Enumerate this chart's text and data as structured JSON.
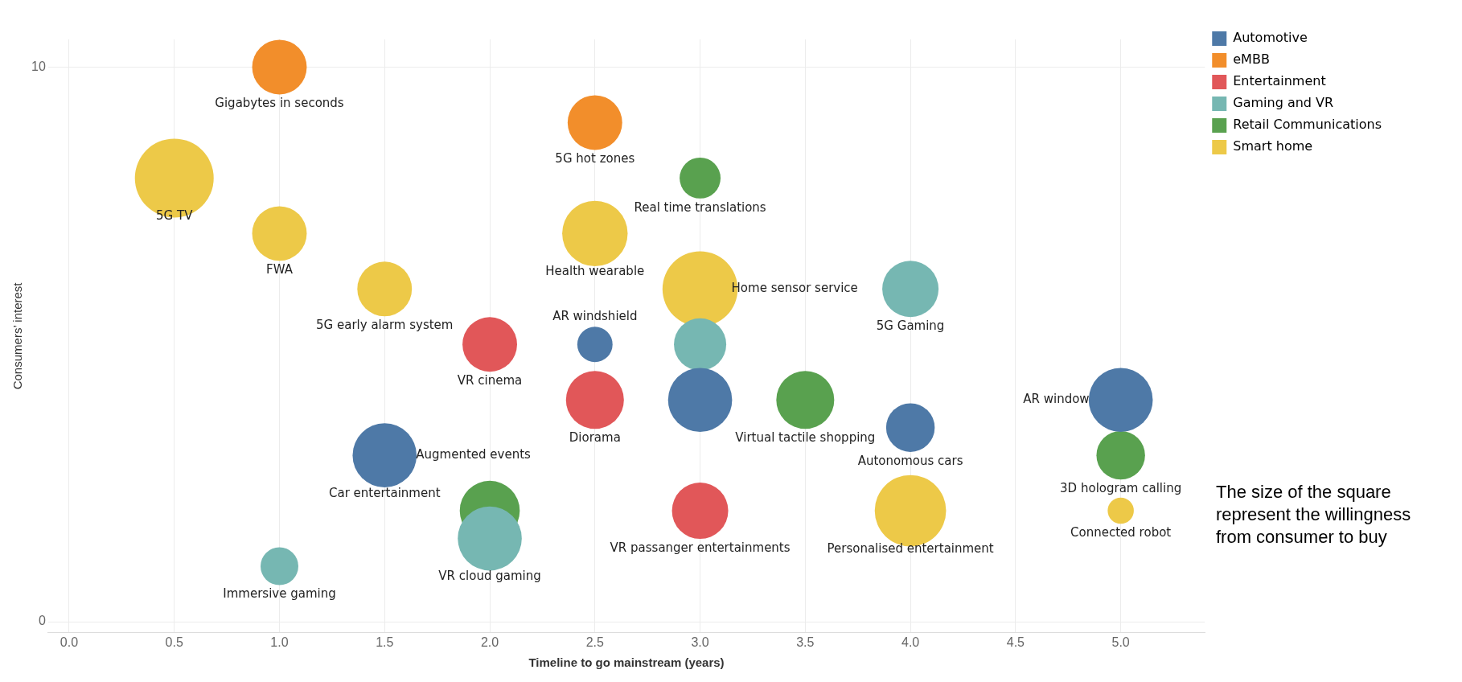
{
  "chart_data": {
    "type": "bubble",
    "xlabel": "Timeline to go mainstream (years)",
    "ylabel": "Consumers’ interest",
    "xlim": [
      -0.1,
      5.4
    ],
    "xticks": [
      {
        "value": 0,
        "label": "0.0"
      },
      {
        "value": 0.5,
        "label": "0.5"
      },
      {
        "value": 1,
        "label": "1.0"
      },
      {
        "value": 1.5,
        "label": "1.5"
      },
      {
        "value": 2,
        "label": "2.0"
      },
      {
        "value": 2.5,
        "label": "2.5"
      },
      {
        "value": 3,
        "label": "3.0"
      },
      {
        "value": 3.5,
        "label": "3.5"
      },
      {
        "value": 4,
        "label": "4.0"
      },
      {
        "value": 4.5,
        "label": "4.5"
      },
      {
        "value": 5,
        "label": "5.0"
      }
    ],
    "ylim": [
      -0.2,
      10.5
    ],
    "yticks": [
      0,
      10
    ],
    "grid": true,
    "legend": "top right",
    "marker": "circle",
    "series": [
      {
        "name": "Automotive",
        "color": "#4e79a7",
        "x": [
          2.5,
          3,
          4,
          5,
          1.5
        ],
        "values": [
          5,
          4,
          3.5,
          4,
          3
        ],
        "sizes": [
          0.2,
          0.66,
          0.38,
          0.66,
          0.66
        ]
      },
      {
        "name": "eMBB",
        "color": "#f28e2b",
        "x": [
          1,
          2.5
        ],
        "values": [
          10,
          9
        ],
        "sizes": [
          0.48,
          0.48
        ]
      },
      {
        "name": "Entertainment",
        "color": "#e15759",
        "x": [
          2,
          2.5,
          3
        ],
        "values": [
          5,
          4,
          2
        ],
        "sizes": [
          0.48,
          0.54,
          0.51
        ]
      },
      {
        "name": "Gaming and VR",
        "color": "#76b7b2",
        "x": [
          4,
          3,
          2,
          1
        ],
        "values": [
          6,
          5,
          1.5,
          1
        ],
        "sizes": [
          0.51,
          0.44,
          0.66,
          0.23
        ]
      },
      {
        "name": "Retail Communications",
        "color": "#59a14f",
        "x": [
          3,
          3.5,
          5,
          2
        ],
        "values": [
          8,
          4,
          3,
          2
        ],
        "sizes": [
          0.27,
          0.54,
          0.38,
          0.58
        ]
      },
      {
        "name": "Smart home",
        "color": "#edc948",
        "x": [
          0.5,
          1,
          2.5,
          1.5,
          3,
          4,
          5
        ],
        "values": [
          8,
          7,
          7,
          6,
          6,
          2,
          2
        ],
        "sizes": [
          1,
          0.48,
          0.69,
          0.48,
          0.91,
          0.82,
          0.11
        ]
      }
    ],
    "annotations": [
      {
        "text": "Gigabytes in seconds",
        "x": 1,
        "y": 10
      },
      {
        "text": "5G hot zones",
        "x": 2.5,
        "y": 9
      },
      {
        "text": "5G TV",
        "x": 0.5,
        "y": 8
      },
      {
        "text": "Real time translations",
        "x": 3,
        "y": 8
      },
      {
        "text": "FWA",
        "x": 1,
        "y": 7
      },
      {
        "text": "Health wearable",
        "x": 2.5,
        "y": 7
      },
      {
        "text": "5G early alarm system",
        "x": 1.5,
        "y": 6
      },
      {
        "text": "Home sensor service",
        "x": 3,
        "y": 6
      },
      {
        "text": "5G Gaming",
        "x": 4,
        "y": 6
      },
      {
        "text": "AR windshield",
        "x": 2.5,
        "y": 5
      },
      {
        "text": "VR cinema",
        "x": 2,
        "y": 5
      },
      {
        "text": "Diorama",
        "x": 2.5,
        "y": 4
      },
      {
        "text": "Virtual tactile shopping",
        "x": 3.5,
        "y": 4
      },
      {
        "text": "AR window",
        "x": 5,
        "y": 4
      },
      {
        "text": "Autonomous cars",
        "x": 4,
        "y": 3.5
      },
      {
        "text": "Car entertainment",
        "x": 1.5,
        "y": 3
      },
      {
        "text": "Augmented events",
        "x": 1.5,
        "y": 3
      },
      {
        "text": "3D hologram calling",
        "x": 5,
        "y": 3
      },
      {
        "text": "Connected robot",
        "x": 5,
        "y": 2
      },
      {
        "text": "Personalised entertainment",
        "x": 4,
        "y": 2
      },
      {
        "text": "VR passanger entertainments",
        "x": 3,
        "y": 2
      },
      {
        "text": "VR cloud gaming",
        "x": 2,
        "y": 1.5
      },
      {
        "text": "Immersive gaming",
        "x": 1,
        "y": 1
      },
      "The size of the square represent the willingness from consumer to buy"
    ]
  }
}
